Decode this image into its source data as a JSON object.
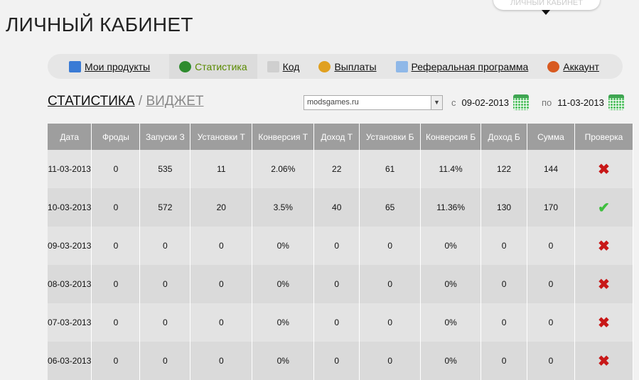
{
  "header": {
    "title": "ЛИЧНЫЙ КАБИНЕТ",
    "bubble": "ЛИЧНЫЙ КАБИНЕТ"
  },
  "nav": [
    {
      "label": "Мои продукты",
      "icon": "monitor-icon",
      "color": "#3a7bd5"
    },
    {
      "label": "Статистика",
      "icon": "pie-chart-icon",
      "color": "#2e8b2e",
      "active": true
    },
    {
      "label": "Код",
      "icon": "code-window-icon",
      "color": "#cfcfcf"
    },
    {
      "label": "Выплаты",
      "icon": "coins-icon",
      "color": "#e0a020"
    },
    {
      "label": "Реферальная программа",
      "icon": "folder-icon",
      "color": "#8fb8e8"
    },
    {
      "label": "Аккаунт",
      "icon": "user-icon",
      "color": "#d85a20"
    }
  ],
  "crumb": {
    "current": "СТАТИСТИКА",
    "sep": "/",
    "other": "ВИДЖЕТ"
  },
  "filter": {
    "site": "modsgames.ru",
    "from_label": "с",
    "from": "09-02-2013",
    "to_label": "по",
    "to": "11-03-2013"
  },
  "table": {
    "headers": [
      "Дата",
      "Фроды",
      "Запуски З",
      "Установки Т",
      "Конверсия Т",
      "Доход Т",
      "Установки Б",
      "Конверсия Б",
      "Доход Б",
      "Сумма",
      "Проверка"
    ],
    "rows": [
      [
        "11-03-2013",
        "0",
        "535",
        "11",
        "2.06%",
        "22",
        "61",
        "11.4%",
        "122",
        "144",
        "fail"
      ],
      [
        "10-03-2013",
        "0",
        "572",
        "20",
        "3.5%",
        "40",
        "65",
        "11.36%",
        "130",
        "170",
        "ok"
      ],
      [
        "09-03-2013",
        "0",
        "0",
        "0",
        "0%",
        "0",
        "0",
        "0%",
        "0",
        "0",
        "fail"
      ],
      [
        "08-03-2013",
        "0",
        "0",
        "0",
        "0%",
        "0",
        "0",
        "0%",
        "0",
        "0",
        "fail"
      ],
      [
        "07-03-2013",
        "0",
        "0",
        "0",
        "0%",
        "0",
        "0",
        "0%",
        "0",
        "0",
        "fail"
      ],
      [
        "06-03-2013",
        "0",
        "0",
        "0",
        "0%",
        "0",
        "0",
        "0%",
        "0",
        "0",
        "fail"
      ]
    ]
  }
}
